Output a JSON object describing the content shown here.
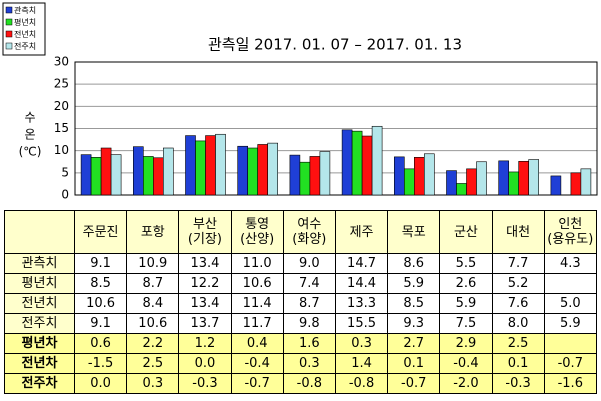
{
  "chart_data": {
    "type": "bar",
    "title": "관측일 2017. 01. 07 – 2017. 01. 13",
    "y_label": [
      "수",
      "온",
      "(℃)"
    ],
    "categories": [
      "주문진",
      "포항",
      "부산\n(기장)",
      "통영\n(산양)",
      "여수\n(화양)",
      "제주",
      "목포",
      "군산",
      "대천",
      "인천\n(용유도)"
    ],
    "series": [
      {
        "name": "관측치",
        "color": "#1f3fd6",
        "values": [
          9.1,
          10.9,
          13.4,
          11.0,
          9.0,
          14.7,
          8.6,
          5.5,
          7.7,
          4.3
        ],
        "value_labels": [
          "9.1",
          "10.9",
          "13.4",
          "11.0",
          "9.0",
          "14.7",
          "8.6",
          "5.5",
          "7.7",
          "4.3"
        ]
      },
      {
        "name": "평년치",
        "color": "#22e022",
        "values": [
          8.5,
          8.7,
          12.2,
          10.6,
          7.4,
          14.4,
          5.9,
          2.6,
          5.2,
          null
        ],
        "value_labels": [
          "8.5",
          "8.7",
          "12.2",
          "10.6",
          "7.4",
          "14.4",
          "5.9",
          "2.6",
          "5.2",
          null
        ]
      },
      {
        "name": "전년치",
        "color": "#ff1010",
        "values": [
          10.6,
          8.4,
          13.4,
          11.4,
          8.7,
          13.3,
          8.5,
          5.9,
          7.6,
          5.0
        ],
        "value_labels": [
          "10.6",
          "8.4",
          "13.4",
          "11.4",
          "8.7",
          "13.3",
          "8.5",
          "5.9",
          "7.6",
          "5.0"
        ]
      },
      {
        "name": "전주치",
        "color": "#b4e6ea",
        "values": [
          9.1,
          10.6,
          13.7,
          11.7,
          9.8,
          15.5,
          9.3,
          7.5,
          8.0,
          5.9
        ],
        "value_labels": [
          "9.1",
          "10.6",
          "13.7",
          "11.7",
          "9.8",
          "15.5",
          "9.3",
          "7.5",
          "8.0",
          "5.9"
        ]
      }
    ],
    "ylim": [
      0,
      30
    ],
    "yticks": [
      0,
      5,
      10,
      15,
      20,
      25,
      30
    ],
    "grid": true
  },
  "table": {
    "diff_rows": [
      {
        "name": "평년차",
        "values": [
          0.6,
          2.2,
          1.2,
          0.4,
          1.6,
          0.3,
          2.7,
          2.9,
          2.5,
          null
        ],
        "value_labels": [
          "0.6",
          "2.2",
          "1.2",
          "0.4",
          "1.6",
          "0.3",
          "2.7",
          "2.9",
          "2.5",
          null
        ]
      },
      {
        "name": "전년차",
        "values": [
          -1.5,
          2.5,
          0.0,
          -0.4,
          0.3,
          1.4,
          0.1,
          -0.4,
          0.1,
          -0.7
        ],
        "value_labels": [
          "-1.5",
          "2.5",
          "0.0",
          "-0.4",
          "0.3",
          "1.4",
          "0.1",
          "-0.4",
          "0.1",
          "-0.7"
        ]
      },
      {
        "name": "전주차",
        "values": [
          0.0,
          0.3,
          -0.3,
          -0.7,
          -0.8,
          -0.8,
          -0.7,
          -2.0,
          -0.3,
          -1.6
        ],
        "value_labels": [
          "0.0",
          "0.3",
          "-0.3",
          "-0.7",
          "-0.8",
          "-0.8",
          "-0.7",
          "-2.0",
          "-0.3",
          "-1.6"
        ]
      }
    ]
  }
}
